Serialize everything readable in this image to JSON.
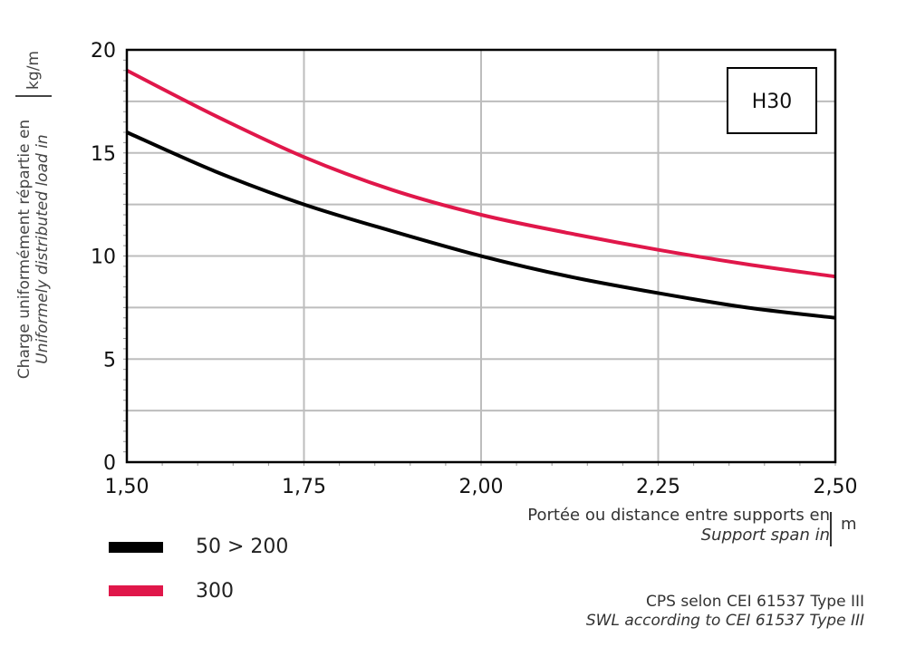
{
  "chart_data": {
    "type": "line",
    "title": "",
    "xlabel": {
      "fr": "Portée ou distance entre supports en",
      "en": "Support span in",
      "unit": "m"
    },
    "ylabel": {
      "fr": "Charge uniformément répartie en",
      "en": "Uniformely distributed load in",
      "unit": "kg/m"
    },
    "xlim": [
      1.5,
      2.5
    ],
    "ylim": [
      0,
      20
    ],
    "x_ticks": [
      "1,50",
      "1,75",
      "2,00",
      "2,25",
      "2,50"
    ],
    "y_ticks": [
      "0",
      "5",
      "10",
      "15",
      "20"
    ],
    "grid": true,
    "annotation_box": "H30",
    "legend_placement": "bottom-left",
    "series": [
      {
        "name": "50 > 200",
        "color": "#000000",
        "x": [
          1.5,
          1.625,
          1.75,
          1.875,
          2.0,
          2.125,
          2.25,
          2.375,
          2.5
        ],
        "y": [
          16.0,
          14.1,
          12.5,
          11.2,
          10.0,
          9.0,
          8.2,
          7.5,
          7.0
        ]
      },
      {
        "name": "300",
        "color": "#e0174a",
        "x": [
          1.5,
          1.625,
          1.75,
          1.875,
          2.0,
          2.125,
          2.25,
          2.375,
          2.5
        ],
        "y": [
          19.0,
          16.8,
          14.8,
          13.2,
          12.0,
          11.1,
          10.3,
          9.6,
          9.0
        ]
      }
    ],
    "footnote": {
      "fr": "CPS selon CEI 61537 Type III",
      "en": "SWL according to CEI 61537 Type III"
    }
  }
}
